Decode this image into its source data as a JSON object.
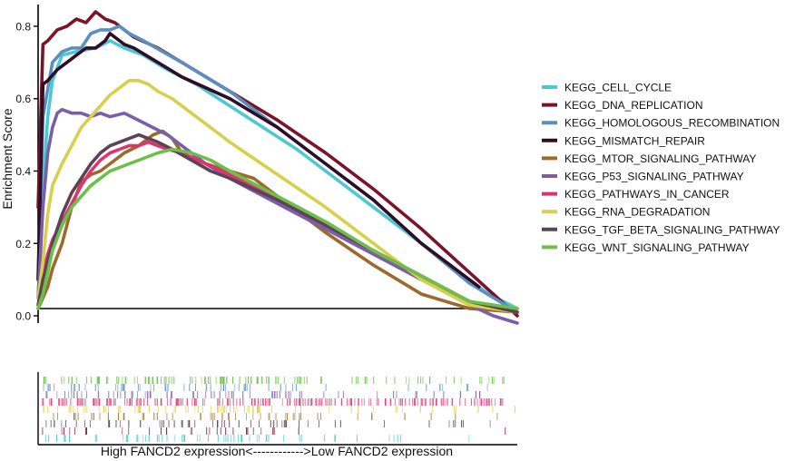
{
  "chart_data": {
    "type": "line",
    "ylabel": "Enrichment Score",
    "xlabel": "High FANCD2 expression<------------>Low FANCD2 expression",
    "xlim": [
      0,
      100
    ],
    "ylim": [
      -0.02,
      0.86
    ],
    "yticks": [
      "0.0",
      "0.2",
      "0.4",
      "0.6",
      "0.8"
    ],
    "ytick_values": [
      0,
      0.2,
      0.4,
      0.6,
      0.8
    ],
    "legend_position": "right",
    "grid": false,
    "series": [
      {
        "name": "KEGG_CELL_CYCLE",
        "color": "#4cc8d4",
        "x": [
          0,
          1,
          2,
          3,
          5,
          8,
          12,
          15,
          18,
          22,
          27,
          33,
          40,
          47,
          54,
          62,
          70,
          78,
          86,
          94,
          100
        ],
        "y": [
          0.05,
          0.35,
          0.55,
          0.65,
          0.72,
          0.73,
          0.74,
          0.76,
          0.74,
          0.72,
          0.68,
          0.64,
          0.58,
          0.52,
          0.46,
          0.38,
          0.3,
          0.22,
          0.14,
          0.06,
          0.02
        ]
      },
      {
        "name": "KEGG_DNA_REPLICATION",
        "color": "#7b1428",
        "x": [
          0,
          1,
          2,
          4,
          6,
          8,
          10,
          12,
          14,
          16,
          18,
          20,
          25,
          30,
          40,
          50,
          60,
          70,
          80,
          90,
          100
        ],
        "y": [
          0.3,
          0.75,
          0.76,
          0.79,
          0.8,
          0.82,
          0.81,
          0.84,
          0.82,
          0.81,
          0.79,
          0.77,
          0.74,
          0.7,
          0.62,
          0.54,
          0.45,
          0.35,
          0.24,
          0.12,
          0.0
        ]
      },
      {
        "name": "KEGG_HOMOLOGOUS_RECOMBINATION",
        "color": "#5a8fc0",
        "x": [
          0,
          1,
          3,
          5,
          7,
          9,
          11,
          13,
          15,
          17,
          19,
          22,
          26,
          30,
          40,
          50,
          60,
          70,
          80,
          90,
          100
        ],
        "y": [
          0.1,
          0.55,
          0.7,
          0.73,
          0.74,
          0.74,
          0.78,
          0.79,
          0.79,
          0.8,
          0.78,
          0.76,
          0.73,
          0.7,
          0.62,
          0.52,
          0.42,
          0.32,
          0.2,
          0.09,
          0.01
        ]
      },
      {
        "name": "KEGG_MISMATCH_REPAIR",
        "color": "#2e0e26",
        "x": [
          0,
          1,
          2,
          4,
          6,
          8,
          10,
          12,
          14,
          15,
          16,
          18,
          20,
          25,
          30,
          40,
          50,
          60,
          70,
          80,
          92
        ],
        "y": [
          0.1,
          0.64,
          0.65,
          0.68,
          0.7,
          0.72,
          0.74,
          0.74,
          0.76,
          0.78,
          0.77,
          0.75,
          0.74,
          0.7,
          0.66,
          0.6,
          0.52,
          0.42,
          0.32,
          0.2,
          0.08
        ]
      },
      {
        "name": "KEGG_MTOR_SIGNALING_PATHWAY",
        "color": "#9c6a2a",
        "x": [
          0,
          1,
          2,
          3,
          5,
          7,
          9,
          11,
          13,
          15,
          18,
          21,
          24,
          26,
          28,
          30,
          35,
          40,
          45,
          50,
          55,
          60,
          70,
          80,
          90,
          100
        ],
        "y": [
          0.02,
          0.05,
          0.08,
          0.13,
          0.2,
          0.3,
          0.37,
          0.39,
          0.4,
          0.42,
          0.45,
          0.47,
          0.5,
          0.51,
          0.49,
          0.45,
          0.42,
          0.4,
          0.38,
          0.33,
          0.28,
          0.23,
          0.14,
          0.06,
          0.02,
          0.01
        ]
      },
      {
        "name": "KEGG_P53_SIGNALING_PATHWAY",
        "color": "#7b5ea8",
        "x": [
          0,
          1,
          2,
          3,
          4,
          5,
          7,
          9,
          11,
          13,
          15,
          18,
          21,
          24,
          27,
          30,
          35,
          40,
          50,
          60,
          70,
          80,
          90,
          95,
          100
        ],
        "y": [
          0.05,
          0.3,
          0.45,
          0.52,
          0.56,
          0.57,
          0.56,
          0.56,
          0.55,
          0.56,
          0.55,
          0.56,
          0.54,
          0.52,
          0.5,
          0.47,
          0.42,
          0.38,
          0.31,
          0.24,
          0.17,
          0.1,
          0.03,
          0.0,
          -0.02
        ]
      },
      {
        "name": "KEGG_PATHWAYS_IN_CANCER",
        "color": "#e0336e",
        "x": [
          0,
          1,
          2,
          3,
          5,
          7,
          9,
          11,
          13,
          15,
          17,
          19,
          21,
          23,
          25,
          27,
          30,
          35,
          40,
          50,
          60,
          70,
          80,
          90,
          100
        ],
        "y": [
          0.05,
          0.12,
          0.17,
          0.21,
          0.26,
          0.31,
          0.36,
          0.4,
          0.43,
          0.45,
          0.46,
          0.47,
          0.47,
          0.48,
          0.47,
          0.46,
          0.45,
          0.42,
          0.39,
          0.32,
          0.25,
          0.18,
          0.11,
          0.04,
          0.01
        ]
      },
      {
        "name": "KEGG_RNA_DEGRADATION",
        "color": "#d8cf4a",
        "x": [
          0,
          1,
          2,
          3,
          5,
          7,
          9,
          11,
          13,
          15,
          17,
          19,
          21,
          23,
          25,
          28,
          32,
          36,
          40,
          50,
          60,
          70,
          80,
          90,
          100
        ],
        "y": [
          0.05,
          0.15,
          0.28,
          0.36,
          0.42,
          0.47,
          0.52,
          0.55,
          0.58,
          0.61,
          0.63,
          0.65,
          0.65,
          0.64,
          0.62,
          0.6,
          0.56,
          0.52,
          0.48,
          0.39,
          0.3,
          0.2,
          0.1,
          0.03,
          0.01
        ]
      },
      {
        "name": "KEGG_TGF_BETA_SIGNALING_PATHWAY",
        "color": "#5c4358",
        "x": [
          0,
          1,
          2,
          3,
          5,
          7,
          9,
          11,
          13,
          15,
          17,
          19,
          21,
          23,
          25,
          28,
          32,
          36,
          40,
          50,
          60,
          70,
          80,
          90,
          100
        ],
        "y": [
          0.03,
          0.1,
          0.15,
          0.2,
          0.28,
          0.34,
          0.38,
          0.42,
          0.45,
          0.47,
          0.48,
          0.49,
          0.5,
          0.49,
          0.48,
          0.46,
          0.43,
          0.4,
          0.38,
          0.32,
          0.25,
          0.18,
          0.11,
          0.04,
          0.01
        ]
      },
      {
        "name": "KEGG_WNT_SIGNALING_PATHWAY",
        "color": "#6cc04a",
        "x": [
          0,
          1,
          2,
          3,
          5,
          7,
          9,
          11,
          13,
          15,
          17,
          19,
          21,
          23,
          25,
          28,
          32,
          36,
          40,
          50,
          60,
          70,
          80,
          90,
          100
        ],
        "y": [
          0.02,
          0.06,
          0.12,
          0.18,
          0.25,
          0.3,
          0.33,
          0.36,
          0.38,
          0.4,
          0.41,
          0.42,
          0.43,
          0.44,
          0.45,
          0.46,
          0.45,
          0.43,
          0.4,
          0.33,
          0.26,
          0.18,
          0.11,
          0.04,
          0.02
        ]
      }
    ],
    "rug": {
      "rows": [
        {
          "color": "#6cc04a",
          "count": 120,
          "density": 0.55
        },
        {
          "color": "#5a8fc0",
          "count": 60,
          "density": 0.35
        },
        {
          "color": "#7b5ea8",
          "count": 70,
          "density": 0.5
        },
        {
          "color": "#e0336e",
          "count": 200,
          "density": 0.95
        },
        {
          "color": "#d8cf4a",
          "count": 70,
          "density": 0.5
        },
        {
          "color": "#9c6a2a",
          "count": 50,
          "density": 0.4
        },
        {
          "color": "#5c4358",
          "count": 60,
          "density": 0.45
        },
        {
          "color": "#7b1428",
          "count": 30,
          "density": 0.3
        },
        {
          "color": "#4cc8d4",
          "count": 60,
          "density": 0.4
        }
      ]
    }
  }
}
